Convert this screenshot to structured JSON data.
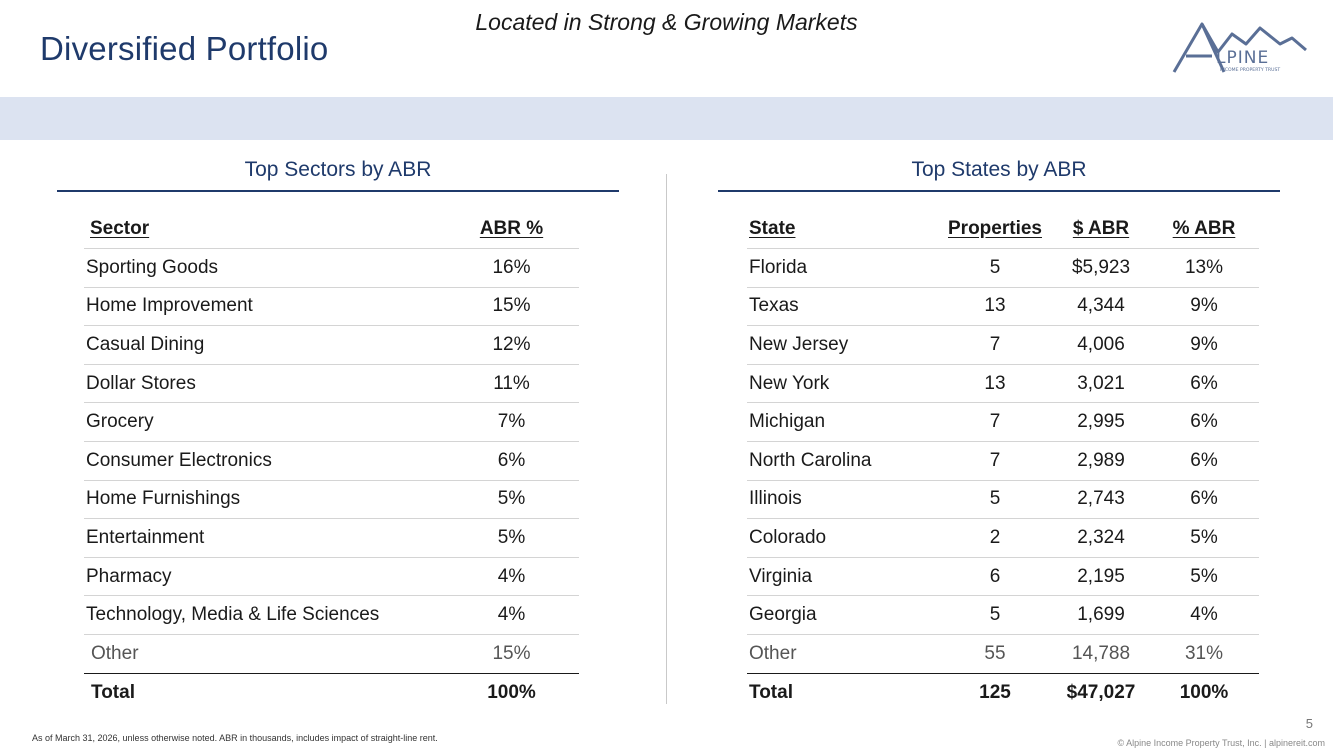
{
  "header": {
    "title": "Diversified Portfolio",
    "logo_text": "LPINE",
    "logo_sub": "INCOME PROPERTY TRUST"
  },
  "banner": {
    "text": "Located in Strong & Growing Markets"
  },
  "sectors": {
    "heading": "Top Sectors by ABR",
    "columns": [
      "Sector",
      "ABR %"
    ],
    "rows": [
      [
        "Sporting Goods",
        "16%"
      ],
      [
        "Home Improvement",
        "15%"
      ],
      [
        "Casual Dining",
        "12%"
      ],
      [
        "Dollar Stores",
        "11%"
      ],
      [
        "Grocery",
        "7%"
      ],
      [
        "Consumer Electronics",
        "6%"
      ],
      [
        "Home Furnishings",
        "5%"
      ],
      [
        "Entertainment",
        "5%"
      ],
      [
        "Pharmacy",
        "4%"
      ],
      [
        "Technology, Media & Life Sciences",
        "4%"
      ]
    ],
    "other": [
      "Other",
      "15%"
    ],
    "total": [
      "Total",
      "100%"
    ]
  },
  "states": {
    "heading": "Top States by ABR",
    "columns": [
      "State",
      "Properties",
      "$ ABR",
      "% ABR"
    ],
    "rows": [
      [
        "Florida",
        "5",
        "$5,923",
        "13%"
      ],
      [
        "Texas",
        "13",
        "4,344",
        "9%"
      ],
      [
        "New Jersey",
        "7",
        "4,006",
        "9%"
      ],
      [
        "New York",
        "13",
        "3,021",
        "6%"
      ],
      [
        "Michigan",
        "7",
        "2,995",
        "6%"
      ],
      [
        "North Carolina",
        "7",
        "2,989",
        "6%"
      ],
      [
        "Illinois",
        "5",
        "2,743",
        "6%"
      ],
      [
        "Colorado",
        "2",
        "2,324",
        "5%"
      ],
      [
        "Virginia",
        "6",
        "2,195",
        "5%"
      ],
      [
        "Georgia",
        "5",
        "1,699",
        "4%"
      ]
    ],
    "other": [
      "Other",
      "55",
      "14,788",
      "31%"
    ],
    "total": [
      "Total",
      "125",
      "$47,027",
      "100%"
    ]
  },
  "footer": {
    "footnote": "As of March 31, 2026, unless otherwise noted. ABR in thousands, includes impact of straight-line rent.",
    "page_number": "5",
    "copyright": "© Alpine Income Property Trust, Inc.  |  alpinereit.com"
  },
  "colors": {
    "brand_navy": "#1f3a6b",
    "banner_bg": "#dce3f1",
    "logo_mountain": "#5a6f96"
  }
}
